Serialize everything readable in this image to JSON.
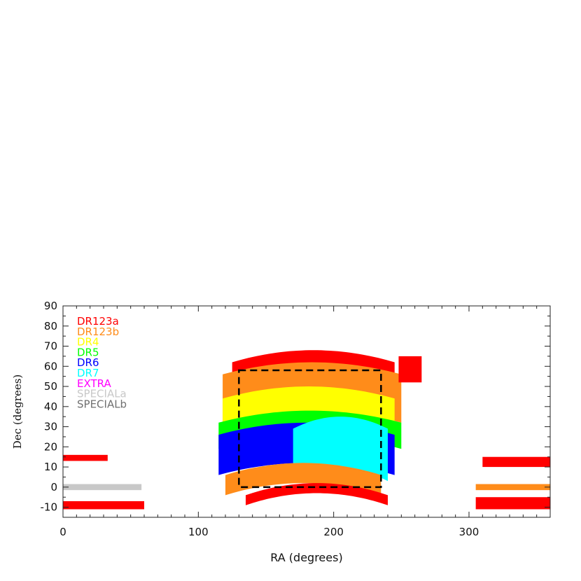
{
  "chart_data": {
    "type": "scatter",
    "title": "",
    "xlabel": "RA (degrees)",
    "ylabel": "Dec (degrees)",
    "xlim": [
      0,
      360
    ],
    "ylim": [
      -15,
      90
    ],
    "x_ticks": [
      0,
      100,
      200,
      300
    ],
    "y_ticks": [
      -10,
      0,
      10,
      20,
      30,
      40,
      50,
      60,
      70,
      80,
      90
    ],
    "grid": false,
    "legend_position": "top-left",
    "legend": [
      {
        "name": "DR123a",
        "color": "#ff0000"
      },
      {
        "name": "DR123b",
        "color": "#ff8c1a"
      },
      {
        "name": "DR4",
        "color": "#ffff00"
      },
      {
        "name": "DR5",
        "color": "#00ff00"
      },
      {
        "name": "DR6",
        "color": "#0000ff"
      },
      {
        "name": "DR7",
        "color": "#00ffff"
      },
      {
        "name": "EXTRA",
        "color": "#ff00ff"
      },
      {
        "name": "SPECIALa",
        "color": "#c8c8c8"
      },
      {
        "name": "SPECIALb",
        "color": "#707070"
      }
    ],
    "selection_box": {
      "ra": [
        130,
        235
      ],
      "dec": [
        0,
        58
      ],
      "style": "dashed",
      "color": "#000000"
    },
    "regions": [
      {
        "series": "DR123a",
        "kind": "band",
        "ra": [
          125,
          245
        ],
        "center": [
          0,
          0
        ],
        "dec": [
          53,
          68
        ]
      },
      {
        "series": "DR123b",
        "kind": "band",
        "ra": [
          118,
          250
        ],
        "center": [
          0,
          0
        ],
        "dec": [
          38,
          62
        ]
      },
      {
        "series": "DR4",
        "kind": "band",
        "ra": [
          118,
          245
        ],
        "center": [
          0,
          0
        ],
        "dec": [
          32,
          50
        ]
      },
      {
        "series": "DR5",
        "kind": "band",
        "ra": [
          115,
          250
        ],
        "center": [
          0,
          0
        ],
        "dec": [
          25,
          38
        ]
      },
      {
        "series": "DR6",
        "kind": "band",
        "ra": [
          115,
          245
        ],
        "center": [
          0,
          0
        ],
        "dec": [
          12,
          32
        ]
      },
      {
        "series": "DR7",
        "kind": "band",
        "ra": [
          170,
          240
        ],
        "center": [
          0,
          0
        ],
        "dec": [
          9,
          35
        ]
      },
      {
        "series": "DR123b",
        "kind": "band",
        "ra": [
          120,
          235
        ],
        "center": [
          0,
          0
        ],
        "dec": [
          2,
          12
        ]
      },
      {
        "series": "DR123a",
        "kind": "band",
        "ra": [
          135,
          240
        ],
        "center": [
          0,
          0
        ],
        "dec": [
          -3,
          2
        ]
      },
      {
        "series": "DR123a",
        "kind": "stripe",
        "ra": [
          0,
          33
        ],
        "dec": [
          13,
          16
        ]
      },
      {
        "series": "DR123a",
        "kind": "stripe",
        "ra": [
          0,
          60
        ],
        "dec": [
          -11,
          -7
        ]
      },
      {
        "series": "SPECIALa",
        "kind": "stripe",
        "ra": [
          0,
          58
        ],
        "dec": [
          -1.5,
          1.5
        ]
      },
      {
        "series": "DR123a",
        "kind": "stripe",
        "ra": [
          310,
          360
        ],
        "dec": [
          10,
          15
        ]
      },
      {
        "series": "DR123a",
        "kind": "stripe",
        "ra": [
          305,
          360
        ],
        "dec": [
          -11,
          -5
        ]
      },
      {
        "series": "DR123b",
        "kind": "stripe",
        "ra": [
          305,
          360
        ],
        "dec": [
          -1.5,
          1.5
        ]
      },
      {
        "series": "DR123a",
        "kind": "stripe",
        "ra": [
          248,
          265
        ],
        "dec": [
          52,
          65
        ]
      }
    ]
  }
}
